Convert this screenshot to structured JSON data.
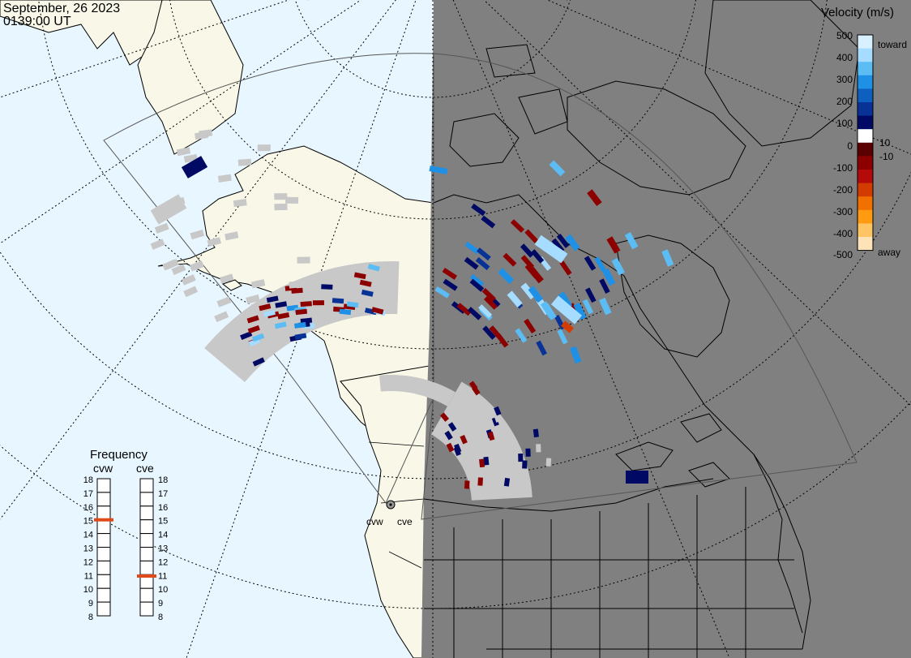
{
  "header": {
    "date": "September, 26 2023",
    "time": "0139:00 UT"
  },
  "legend": {
    "title": "Velocity (m/s)",
    "ticks": [
      "500",
      "400",
      "300",
      "200",
      "100",
      "10",
      "0",
      "-10",
      "-100",
      "-200",
      "-300",
      "-400",
      "-500"
    ],
    "toward": "toward",
    "away": "away",
    "colors": [
      "#d8f0ff",
      "#a6dcff",
      "#5cbcf4",
      "#1e90e6",
      "#0f5fc0",
      "#083296",
      "#000a64",
      "#ffffff",
      "#5a0000",
      "#8c0000",
      "#b40a0a",
      "#d23c00",
      "#f07000",
      "#ff9b10",
      "#ffc464",
      "#ffe3b8"
    ]
  },
  "frequency": {
    "title": "Frequency",
    "radars": [
      {
        "name": "cvw",
        "value": 15
      },
      {
        "name": "cve",
        "value": 10.9
      }
    ],
    "scale_labels": [
      "18",
      "17",
      "16",
      "15",
      "14",
      "13",
      "12",
      "11",
      "10",
      "9",
      "8"
    ],
    "min": 8,
    "max": 18
  },
  "map": {
    "radar_labels": [
      "cvw",
      "cve"
    ],
    "colors": {
      "ocean": "#e8f6ff",
      "land_day": "#f9f8e8",
      "night": "#808080",
      "ground_scatter": "#c8c8c8",
      "marker": "#e04a1a"
    }
  }
}
